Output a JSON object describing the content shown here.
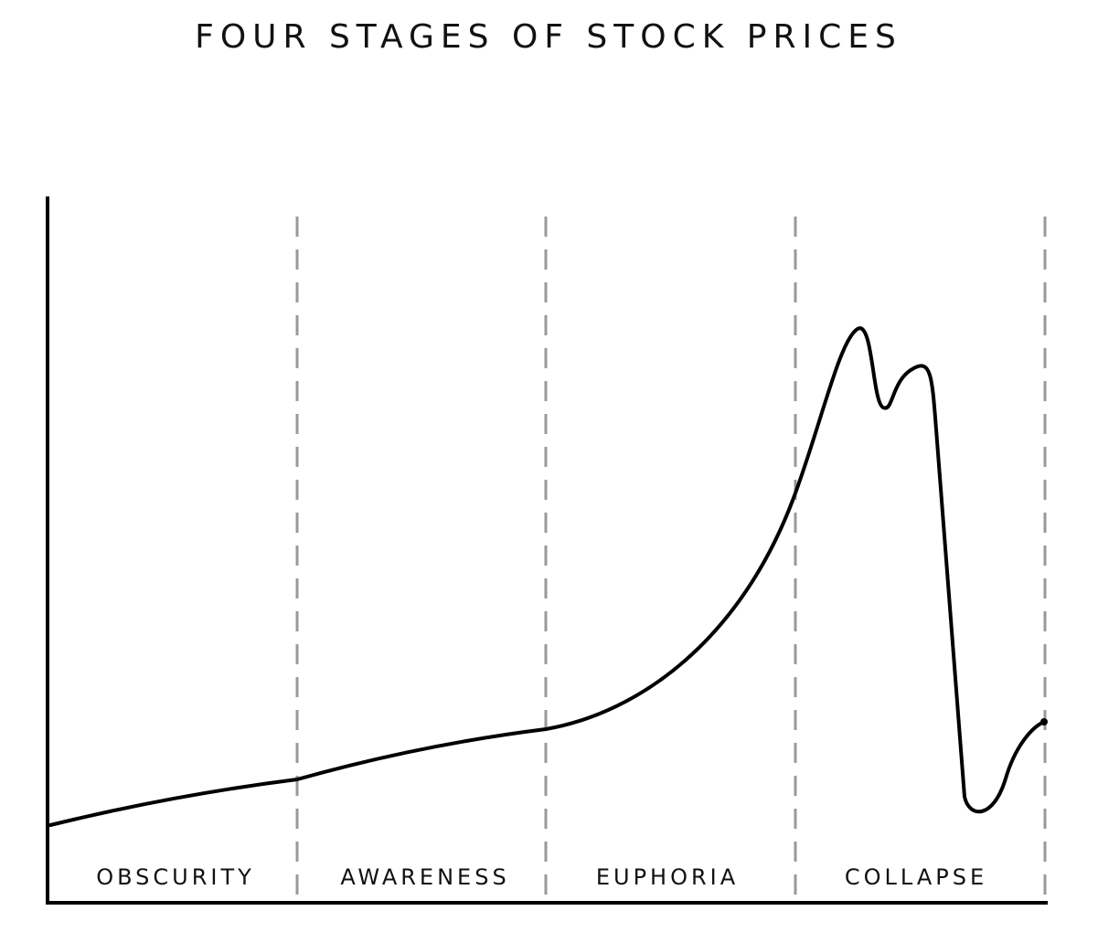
{
  "title": "FOUR STAGES OF STOCK PRICES",
  "stages": [
    "OBSCURITY",
    "AWARENESS",
    "EUPHORIA",
    "COLLAPSE"
  ]
}
